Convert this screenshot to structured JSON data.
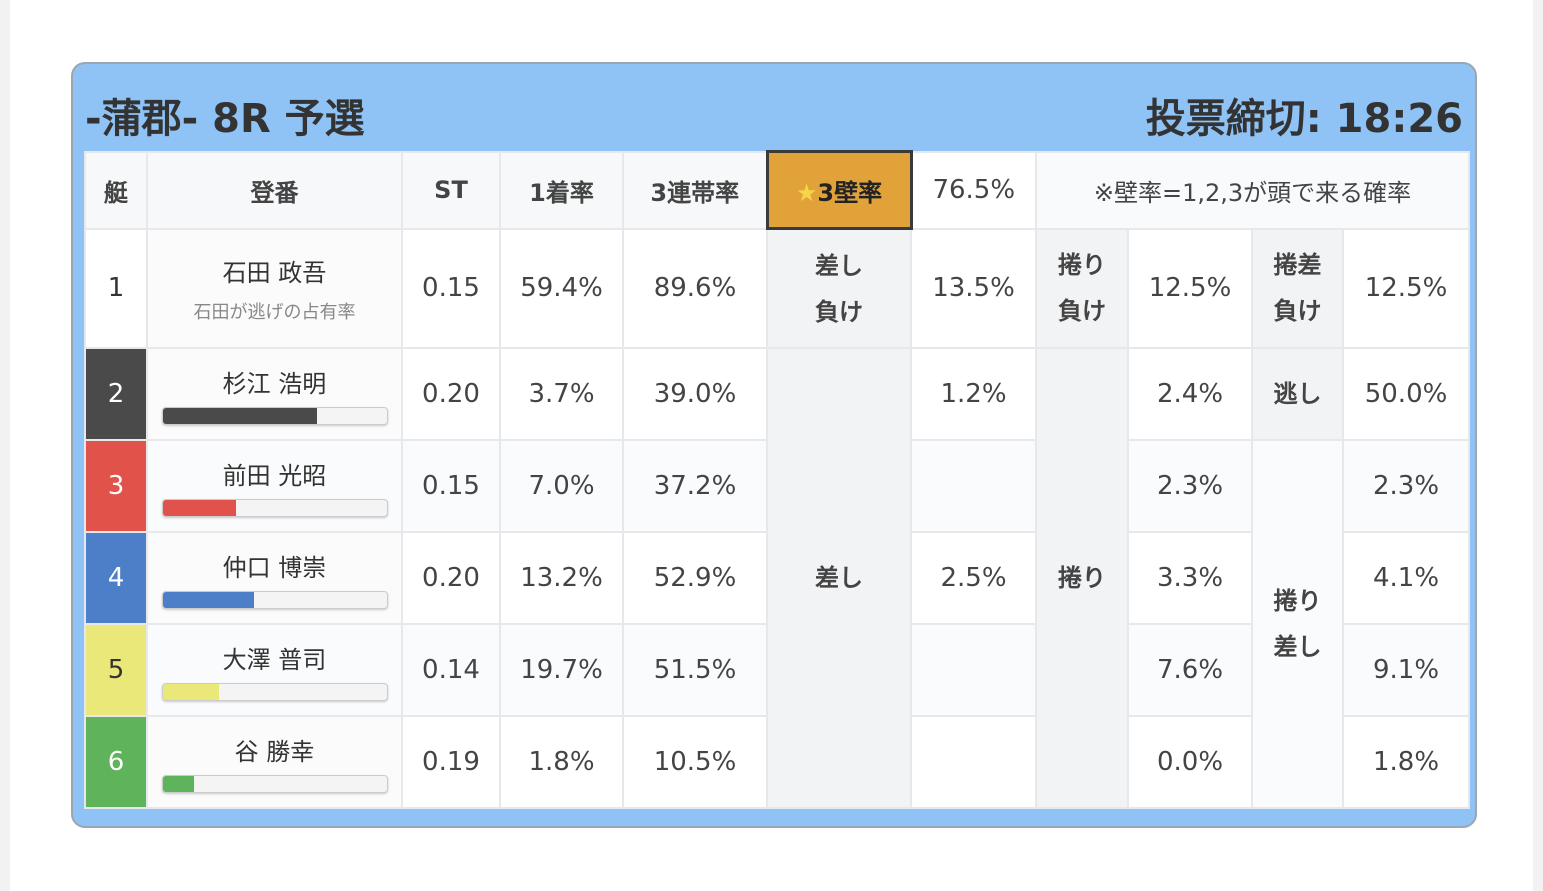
{
  "header": {
    "title": "-蒲郡- 8R 予選",
    "deadline": "投票締切: 18:26"
  },
  "columns": {
    "boat": "艇",
    "name": "登番",
    "st": "ST",
    "win": "1着率",
    "top3": "3連帯率",
    "wall": "3壁率",
    "wall_icon": "star-icon",
    "wall_value": "76.5%",
    "note": "※壁率=1,2,3が頭で来る確率"
  },
  "racers": [
    {
      "boat": "1",
      "name": "石田 政吾",
      "sub": "石田が逃げの占有率",
      "st": "0.15",
      "win": "59.4%",
      "top3": "89.6%",
      "color": "#ffffff"
    },
    {
      "boat": "2",
      "name": "杉江 浩明",
      "bar": 0.69,
      "st": "0.20",
      "win": "3.7%",
      "top3": "39.0%",
      "color": "#4a4a4a"
    },
    {
      "boat": "3",
      "name": "前田 光昭",
      "bar": 0.33,
      "st": "0.15",
      "win": "7.0%",
      "top3": "37.2%",
      "color": "#e0524a"
    },
    {
      "boat": "4",
      "name": "仲口 博崇",
      "bar": 0.41,
      "st": "0.20",
      "win": "13.2%",
      "top3": "52.9%",
      "color": "#4d7fc9"
    },
    {
      "boat": "5",
      "name": "大澤 普司",
      "bar": 0.25,
      "st": "0.14",
      "win": "19.7%",
      "top3": "51.5%",
      "color": "#ebe87a"
    },
    {
      "boat": "6",
      "name": "谷 勝幸",
      "bar": 0.14,
      "st": "0.19",
      "win": "1.8%",
      "top3": "10.5%",
      "color": "#5fb35a"
    }
  ],
  "patterns": {
    "sashi_make": {
      "l1": "差し",
      "l2": "負け",
      "value": "13.5%"
    },
    "makuri_make": {
      "l1": "捲り",
      "l2": "負け",
      "value": "12.5%"
    },
    "makurisashi_make": {
      "l1": "捲差",
      "l2": "負け",
      "value": "12.5%"
    },
    "sashi": {
      "label": "差し",
      "values": [
        "1.2%",
        "",
        "2.5%",
        "",
        ""
      ]
    },
    "makuri": {
      "label": "捲り",
      "values": [
        "2.4%",
        "2.3%",
        "3.3%",
        "7.6%",
        "0.0%"
      ]
    },
    "nige": {
      "label": "逃し",
      "value": "50.0%"
    },
    "makurisashi": {
      "l1": "捲り",
      "l2": "差し",
      "values": [
        "2.3%",
        "4.1%",
        "9.1%",
        "1.8%"
      ]
    }
  }
}
